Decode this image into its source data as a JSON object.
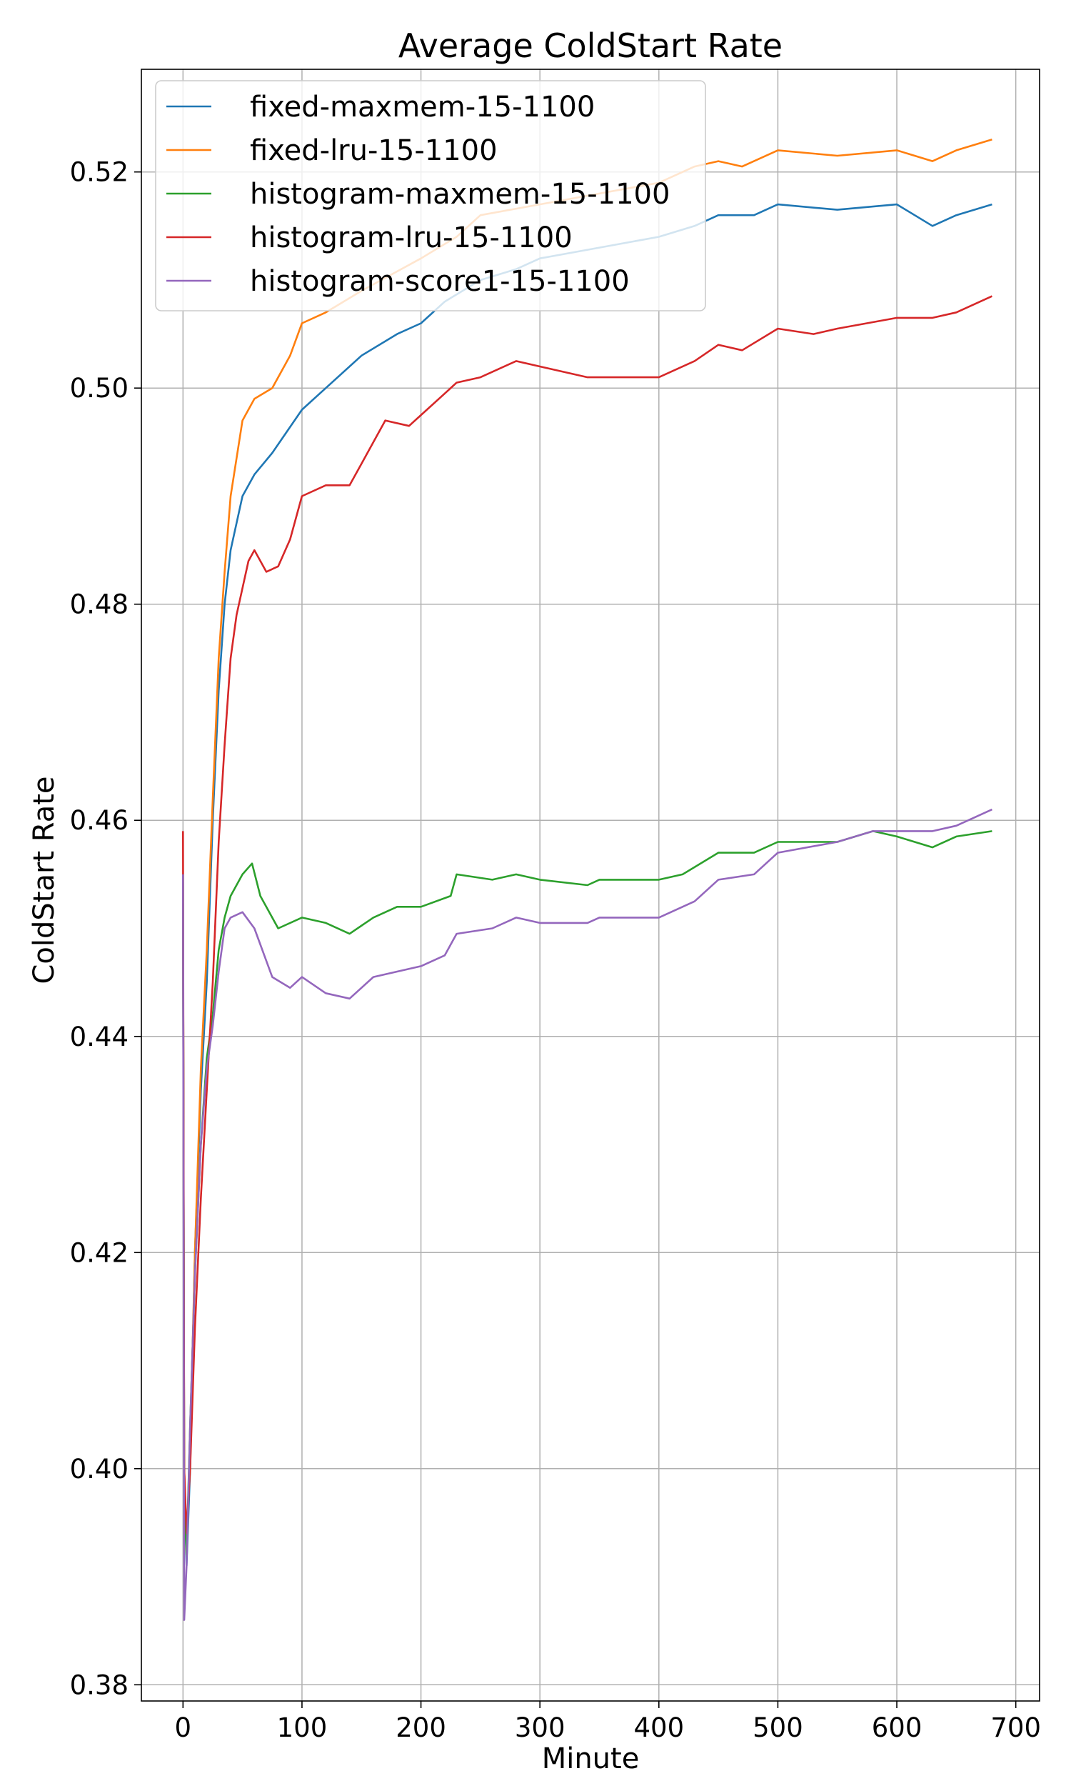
{
  "chart_data": {
    "type": "line",
    "title": "Average ColdStart Rate",
    "xlabel": "Minute",
    "ylabel": "ColdStart Rate",
    "xlim": [
      -35,
      720
    ],
    "ylim": [
      0.3785,
      0.5295
    ],
    "xticks": [
      0,
      100,
      200,
      300,
      400,
      500,
      600,
      700
    ],
    "yticks": [
      0.38,
      0.4,
      0.42,
      0.44,
      0.46,
      0.48,
      0.5,
      0.52
    ],
    "grid": true,
    "legend_position": "top-left",
    "series": [
      {
        "name": "fixed-maxmem-15-1100",
        "color": "#1f77b4",
        "points": [
          [
            0,
            0.455
          ],
          [
            1,
            0.4
          ],
          [
            3,
            0.391
          ],
          [
            6,
            0.4
          ],
          [
            10,
            0.42
          ],
          [
            15,
            0.435
          ],
          [
            20,
            0.445
          ],
          [
            25,
            0.46
          ],
          [
            30,
            0.472
          ],
          [
            35,
            0.48
          ],
          [
            40,
            0.485
          ],
          [
            50,
            0.49
          ],
          [
            60,
            0.492
          ],
          [
            75,
            0.494
          ],
          [
            100,
            0.498
          ],
          [
            120,
            0.5
          ],
          [
            150,
            0.503
          ],
          [
            180,
            0.505
          ],
          [
            200,
            0.506
          ],
          [
            220,
            0.508
          ],
          [
            250,
            0.51
          ],
          [
            280,
            0.511
          ],
          [
            300,
            0.512
          ],
          [
            350,
            0.513
          ],
          [
            400,
            0.514
          ],
          [
            430,
            0.515
          ],
          [
            450,
            0.516
          ],
          [
            480,
            0.516
          ],
          [
            500,
            0.517
          ],
          [
            550,
            0.5165
          ],
          [
            600,
            0.517
          ],
          [
            630,
            0.515
          ],
          [
            650,
            0.516
          ],
          [
            680,
            0.517
          ]
        ]
      },
      {
        "name": "fixed-lru-15-1100",
        "color": "#ff7f0e",
        "points": [
          [
            0,
            0.455
          ],
          [
            1,
            0.4
          ],
          [
            3,
            0.392
          ],
          [
            6,
            0.402
          ],
          [
            10,
            0.42
          ],
          [
            15,
            0.437
          ],
          [
            20,
            0.448
          ],
          [
            25,
            0.462
          ],
          [
            30,
            0.475
          ],
          [
            35,
            0.483
          ],
          [
            40,
            0.49
          ],
          [
            50,
            0.497
          ],
          [
            60,
            0.499
          ],
          [
            75,
            0.5
          ],
          [
            90,
            0.503
          ],
          [
            100,
            0.506
          ],
          [
            120,
            0.507
          ],
          [
            150,
            0.509
          ],
          [
            200,
            0.512
          ],
          [
            230,
            0.514
          ],
          [
            250,
            0.516
          ],
          [
            300,
            0.517
          ],
          [
            350,
            0.518
          ],
          [
            400,
            0.519
          ],
          [
            430,
            0.5205
          ],
          [
            450,
            0.521
          ],
          [
            470,
            0.5205
          ],
          [
            500,
            0.522
          ],
          [
            550,
            0.5215
          ],
          [
            600,
            0.522
          ],
          [
            630,
            0.521
          ],
          [
            650,
            0.522
          ],
          [
            680,
            0.523
          ]
        ]
      },
      {
        "name": "histogram-maxmem-15-1100",
        "color": "#2ca02c",
        "points": [
          [
            0,
            0.455
          ],
          [
            1,
            0.398
          ],
          [
            3,
            0.392
          ],
          [
            6,
            0.404
          ],
          [
            10,
            0.418
          ],
          [
            15,
            0.43
          ],
          [
            20,
            0.438
          ],
          [
            25,
            0.442
          ],
          [
            30,
            0.448
          ],
          [
            35,
            0.451
          ],
          [
            40,
            0.453
          ],
          [
            50,
            0.455
          ],
          [
            58,
            0.456
          ],
          [
            65,
            0.453
          ],
          [
            80,
            0.45
          ],
          [
            100,
            0.451
          ],
          [
            120,
            0.4505
          ],
          [
            140,
            0.4495
          ],
          [
            160,
            0.451
          ],
          [
            180,
            0.452
          ],
          [
            200,
            0.452
          ],
          [
            225,
            0.453
          ],
          [
            230,
            0.455
          ],
          [
            260,
            0.4545
          ],
          [
            280,
            0.455
          ],
          [
            300,
            0.4545
          ],
          [
            340,
            0.454
          ],
          [
            350,
            0.4545
          ],
          [
            400,
            0.4545
          ],
          [
            420,
            0.455
          ],
          [
            450,
            0.457
          ],
          [
            480,
            0.457
          ],
          [
            500,
            0.458
          ],
          [
            550,
            0.458
          ],
          [
            580,
            0.459
          ],
          [
            600,
            0.4585
          ],
          [
            630,
            0.4575
          ],
          [
            650,
            0.4585
          ],
          [
            680,
            0.459
          ]
        ]
      },
      {
        "name": "histogram-lru-15-1100",
        "color": "#d62728",
        "points": [
          [
            0,
            0.459
          ],
          [
            1,
            0.4
          ],
          [
            3,
            0.394
          ],
          [
            6,
            0.4
          ],
          [
            10,
            0.413
          ],
          [
            15,
            0.425
          ],
          [
            20,
            0.435
          ],
          [
            25,
            0.445
          ],
          [
            30,
            0.458
          ],
          [
            35,
            0.467
          ],
          [
            40,
            0.475
          ],
          [
            45,
            0.479
          ],
          [
            55,
            0.484
          ],
          [
            60,
            0.485
          ],
          [
            70,
            0.483
          ],
          [
            80,
            0.4835
          ],
          [
            90,
            0.486
          ],
          [
            100,
            0.49
          ],
          [
            120,
            0.491
          ],
          [
            140,
            0.491
          ],
          [
            150,
            0.493
          ],
          [
            170,
            0.497
          ],
          [
            190,
            0.4965
          ],
          [
            200,
            0.4975
          ],
          [
            220,
            0.4995
          ],
          [
            230,
            0.5005
          ],
          [
            250,
            0.501
          ],
          [
            280,
            0.5025
          ],
          [
            300,
            0.502
          ],
          [
            340,
            0.501
          ],
          [
            350,
            0.501
          ],
          [
            400,
            0.501
          ],
          [
            430,
            0.5025
          ],
          [
            450,
            0.504
          ],
          [
            470,
            0.5035
          ],
          [
            500,
            0.5055
          ],
          [
            530,
            0.505
          ],
          [
            550,
            0.5055
          ],
          [
            600,
            0.5065
          ],
          [
            630,
            0.5065
          ],
          [
            650,
            0.507
          ],
          [
            680,
            0.5085
          ]
        ]
      },
      {
        "name": "histogram-score1-15-1100",
        "color": "#9467bd",
        "points": [
          [
            0,
            0.455
          ],
          [
            1,
            0.386
          ],
          [
            3,
            0.391
          ],
          [
            6,
            0.404
          ],
          [
            10,
            0.418
          ],
          [
            15,
            0.43
          ],
          [
            20,
            0.437
          ],
          [
            25,
            0.441
          ],
          [
            30,
            0.446
          ],
          [
            35,
            0.45
          ],
          [
            40,
            0.451
          ],
          [
            50,
            0.4515
          ],
          [
            60,
            0.45
          ],
          [
            75,
            0.4455
          ],
          [
            90,
            0.4445
          ],
          [
            100,
            0.4455
          ],
          [
            120,
            0.444
          ],
          [
            140,
            0.4435
          ],
          [
            160,
            0.4455
          ],
          [
            180,
            0.446
          ],
          [
            200,
            0.4465
          ],
          [
            220,
            0.4475
          ],
          [
            230,
            0.4495
          ],
          [
            260,
            0.45
          ],
          [
            280,
            0.451
          ],
          [
            300,
            0.4505
          ],
          [
            340,
            0.4505
          ],
          [
            350,
            0.451
          ],
          [
            400,
            0.451
          ],
          [
            430,
            0.4525
          ],
          [
            450,
            0.4545
          ],
          [
            480,
            0.455
          ],
          [
            500,
            0.457
          ],
          [
            550,
            0.458
          ],
          [
            580,
            0.459
          ],
          [
            600,
            0.459
          ],
          [
            630,
            0.459
          ],
          [
            650,
            0.4595
          ],
          [
            680,
            0.461
          ]
        ]
      }
    ]
  }
}
